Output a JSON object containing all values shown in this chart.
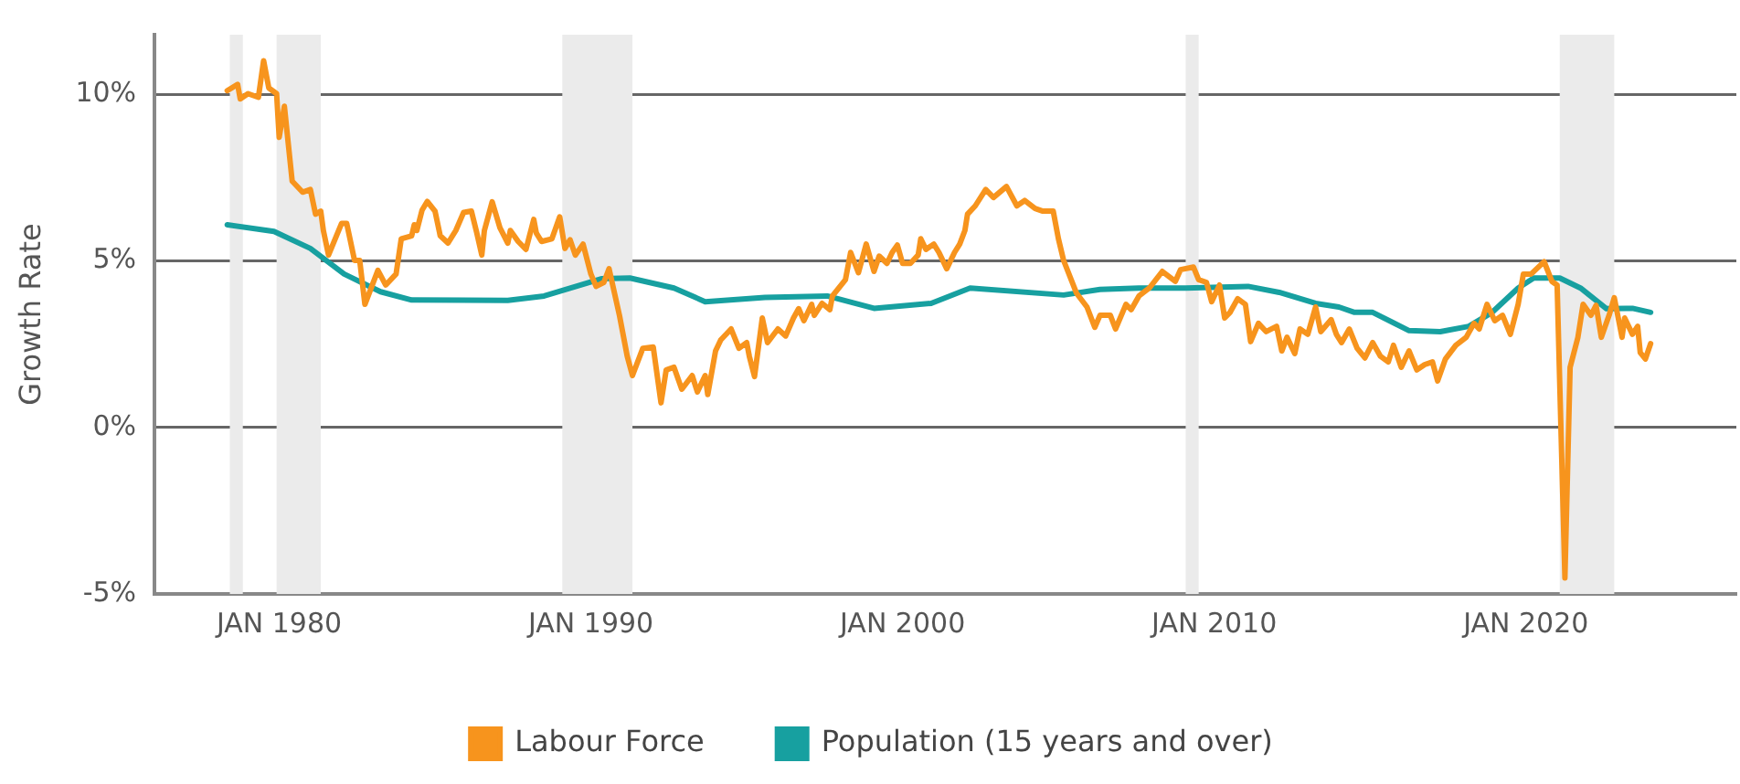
{
  "chart_data": {
    "type": "line",
    "ylabel": "Growth Rate",
    "xlim": [
      "1976-01",
      "2026-10"
    ],
    "ylim": [
      -5,
      11.8
    ],
    "xticks": [
      {
        "value": "1980-01",
        "label": "JAN 1980"
      },
      {
        "value": "1990-01",
        "label": "JAN 1990"
      },
      {
        "value": "2000-01",
        "label": "JAN 2000"
      },
      {
        "value": "2010-01",
        "label": "JAN 2010"
      },
      {
        "value": "2020-01",
        "label": "JAN 2020"
      }
    ],
    "yticks": [
      {
        "value": -5,
        "label": "-5%"
      },
      {
        "value": 0,
        "label": "0%"
      },
      {
        "value": 5,
        "label": "5%"
      },
      {
        "value": 10,
        "label": "10%"
      }
    ],
    "grid": "y",
    "legend": "bottom",
    "marker": "none",
    "line_style": "solid",
    "bands": [
      {
        "axis": "x",
        "from": "1978-06",
        "to": "1978-11",
        "color": "#ebebeb"
      },
      {
        "axis": "x",
        "from": "1979-12",
        "to": "1981-05",
        "color": "#ebebeb"
      },
      {
        "axis": "x",
        "from": "1989-02",
        "to": "1991-05",
        "color": "#ebebeb"
      },
      {
        "axis": "x",
        "from": "2009-02",
        "to": "2009-07",
        "color": "#ebebeb"
      },
      {
        "axis": "x",
        "from": "2021-02",
        "to": "2022-11",
        "color": "#ebebeb"
      }
    ],
    "series": [
      {
        "name": "Labour Force",
        "color": "#f7941d",
        "x": [
          "1978-05",
          "1978-09",
          "1978-10",
          "1979-01",
          "1979-05",
          "1979-07",
          "1979-09",
          "1979-12",
          "1980-01",
          "1980-03",
          "1980-06",
          "1980-10",
          "1981-01",
          "1981-03",
          "1981-05",
          "1981-06",
          "1981-08",
          "1982-01",
          "1982-03",
          "1982-06",
          "1982-08",
          "1982-10",
          "1983-03",
          "1983-06",
          "1983-10",
          "1983-12",
          "1984-04",
          "1984-05",
          "1984-06",
          "1984-08",
          "1984-10",
          "1985-01",
          "1985-03",
          "1985-06",
          "1985-09",
          "1985-12",
          "1986-03",
          "1986-05",
          "1986-07",
          "1986-08",
          "1986-11",
          "1987-02",
          "1987-05",
          "1987-06",
          "1987-09",
          "1987-12",
          "1988-03",
          "1988-04",
          "1988-06",
          "1988-10",
          "1989-01",
          "1989-03",
          "1989-05",
          "1989-07",
          "1989-10",
          "1990-01",
          "1990-03",
          "1990-06",
          "1990-08",
          "1990-12",
          "1991-03",
          "1991-05",
          "1991-09",
          "1992-01",
          "1992-04",
          "1992-06",
          "1992-09",
          "1992-12",
          "1993-04",
          "1993-06",
          "1993-09",
          "1993-10",
          "1994-01",
          "1994-03",
          "1994-07",
          "1994-10",
          "1995-01",
          "1995-02",
          "1995-04",
          "1995-07",
          "1995-09",
          "1996-01",
          "1996-04",
          "1996-07",
          "1996-09",
          "1996-11",
          "1997-02",
          "1997-03",
          "1997-06",
          "1997-09",
          "1997-10",
          "1998-03",
          "1998-05",
          "1998-08",
          "1998-11",
          "1999-02",
          "1999-04",
          "1999-07",
          "1999-09",
          "1999-11",
          "2000-01",
          "2000-04",
          "2000-07",
          "2000-08",
          "2000-10",
          "2001-01",
          "2001-03",
          "2001-06",
          "2001-09",
          "2001-11",
          "2002-01",
          "2002-02",
          "2002-05",
          "2002-09",
          "2002-12",
          "2003-05",
          "2003-09",
          "2003-12",
          "2004-04",
          "2004-07",
          "2004-11",
          "2005-01",
          "2005-03",
          "2005-08",
          "2005-12",
          "2006-03",
          "2006-05",
          "2006-09",
          "2006-11",
          "2007-03",
          "2007-05",
          "2007-08",
          "2007-12",
          "2008-05",
          "2008-10",
          "2008-12",
          "2009-05",
          "2009-07",
          "2009-10",
          "2009-12",
          "2010-03",
          "2010-05",
          "2010-07",
          "2010-10",
          "2011-01",
          "2011-03",
          "2011-06",
          "2011-09",
          "2012-01",
          "2012-03",
          "2012-05",
          "2012-08",
          "2012-10",
          "2013-01",
          "2013-04",
          "2013-06",
          "2013-10",
          "2013-12",
          "2014-02",
          "2014-05",
          "2014-08",
          "2014-11",
          "2015-02",
          "2015-05",
          "2015-08",
          "2015-10",
          "2016-01",
          "2016-04",
          "2016-07",
          "2016-10",
          "2017-01",
          "2017-03",
          "2017-06",
          "2017-10",
          "2018-02",
          "2018-05",
          "2018-07",
          "2018-10",
          "2019-01",
          "2019-04",
          "2019-07",
          "2019-10",
          "2019-12",
          "2020-03",
          "2020-08",
          "2020-11",
          "2021-01",
          "2021-04",
          "2021-06",
          "2021-09",
          "2021-11",
          "2022-02",
          "2022-04",
          "2022-06",
          "2022-09",
          "2022-11",
          "2023-02",
          "2023-03",
          "2023-06",
          "2023-08",
          "2023-09",
          "2023-11",
          "2024-01"
        ],
        "values": [
          10.12,
          10.31,
          9.87,
          10.03,
          9.92,
          11.02,
          10.2,
          10.03,
          8.72,
          9.65,
          7.4,
          7.07,
          7.15,
          6.41,
          6.5,
          5.92,
          5.18,
          6.13,
          6.13,
          5.02,
          5.02,
          3.7,
          4.72,
          4.28,
          4.61,
          5.67,
          5.76,
          6.09,
          5.92,
          6.53,
          6.79,
          6.5,
          5.76,
          5.54,
          5.92,
          6.46,
          6.5,
          5.87,
          5.18,
          5.92,
          6.78,
          6.0,
          5.54,
          5.92,
          5.59,
          5.35,
          6.25,
          5.84,
          5.59,
          5.67,
          6.33,
          5.38,
          5.64,
          5.18,
          5.51,
          4.61,
          4.24,
          4.36,
          4.77,
          3.37,
          2.14,
          1.56,
          2.38,
          2.42,
          0.74,
          1.73,
          1.81,
          1.15,
          1.56,
          1.07,
          1.56,
          0.99,
          2.3,
          2.63,
          2.96,
          2.38,
          2.55,
          2.14,
          1.53,
          3.29,
          2.55,
          2.96,
          2.75,
          3.29,
          3.57,
          3.21,
          3.7,
          3.37,
          3.73,
          3.54,
          3.95,
          4.44,
          5.26,
          4.65,
          5.51,
          4.69,
          5.15,
          4.93,
          5.26,
          5.48,
          4.93,
          4.93,
          5.18,
          5.67,
          5.35,
          5.51,
          5.26,
          4.77,
          5.26,
          5.51,
          5.92,
          6.41,
          6.66,
          7.15,
          6.91,
          7.24,
          6.66,
          6.82,
          6.58,
          6.5,
          6.5,
          5.67,
          5.02,
          4.03,
          3.62,
          3.01,
          3.37,
          3.37,
          2.96,
          3.7,
          3.54,
          3.95,
          4.19,
          4.69,
          4.39,
          4.74,
          4.82,
          4.44,
          4.36,
          3.78,
          4.28,
          3.29,
          3.45,
          3.87,
          3.7,
          2.58,
          3.13,
          2.88,
          3.04,
          2.3,
          2.71,
          2.22,
          2.96,
          2.8,
          3.62,
          2.88,
          3.24,
          2.8,
          2.55,
          2.96,
          2.38,
          2.09,
          2.55,
          2.14,
          1.97,
          2.47,
          1.81,
          2.3,
          1.73,
          1.89,
          1.97,
          1.4,
          2.06,
          2.47,
          2.71,
          3.13,
          2.96,
          3.7,
          3.21,
          3.37,
          2.8,
          3.7,
          4.61,
          4.61,
          4.98,
          4.39,
          4.28,
          -4.52,
          1.81,
          2.71,
          3.7,
          3.37,
          3.67,
          2.71,
          3.37,
          3.9,
          2.71,
          3.29,
          2.8,
          3.04,
          2.25,
          2.06,
          2.52
        ]
      },
      {
        "name": "Population (15 years and over)",
        "color": "#17a0a0",
        "x": [
          "1978-05",
          "1979-11",
          "1981-01",
          "1982-02",
          "1983-04",
          "1984-04",
          "1987-05",
          "1988-07",
          "1990-05",
          "1991-04",
          "1992-09",
          "1993-09",
          "1995-08",
          "1997-08",
          "1999-02",
          "2000-12",
          "2002-03",
          "2005-03",
          "2006-05",
          "2007-08",
          "2009-02",
          "2011-02",
          "2012-02",
          "2013-04",
          "2014-01",
          "2014-07",
          "2015-02",
          "2016-04",
          "2017-04",
          "2018-03",
          "2018-12",
          "2019-10",
          "2020-04",
          "2021-02",
          "2021-10",
          "2022-08",
          "2023-06",
          "2024-01"
        ],
        "values": [
          6.09,
          5.89,
          5.38,
          4.61,
          4.08,
          3.83,
          3.82,
          3.95,
          4.47,
          4.49,
          4.19,
          3.78,
          3.91,
          3.95,
          3.58,
          3.73,
          4.19,
          3.98,
          4.15,
          4.19,
          4.19,
          4.24,
          4.06,
          3.73,
          3.62,
          3.46,
          3.46,
          2.91,
          2.88,
          3.04,
          3.46,
          4.19,
          4.49,
          4.49,
          4.19,
          3.57,
          3.58,
          3.46
        ]
      }
    ]
  }
}
